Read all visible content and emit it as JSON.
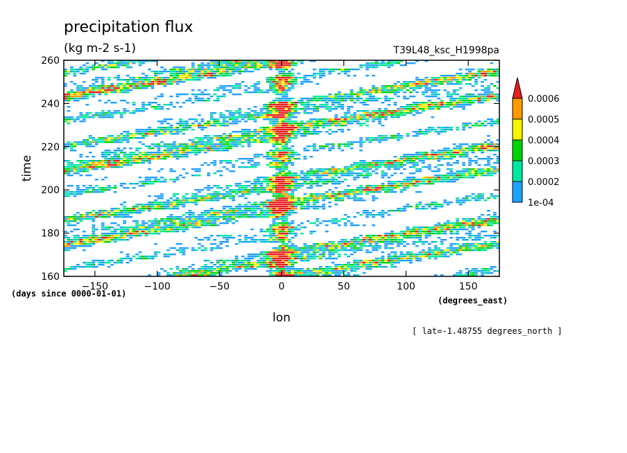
{
  "header": {
    "title": "precipitation flux",
    "units": "(kg m-2 s-1)",
    "run_name": "T39L48_ksc_H1998pa",
    "slice_note": "[ lat=-1.48755 degrees_north ]"
  },
  "chart_data": {
    "type": "heatmap",
    "xlabel": "lon",
    "xunits": "(degrees_east)",
    "ylabel": "time",
    "yunits": "(days since 0000-01-01)",
    "xlim": [
      -175,
      175
    ],
    "ylim": [
      160,
      260
    ],
    "x_ticks": [
      -150,
      -100,
      -50,
      0,
      50,
      100,
      150
    ],
    "y_ticks": [
      160,
      180,
      200,
      220,
      240,
      260
    ],
    "colorbar": {
      "levels": [
        "1e-04",
        "0.0002",
        "0.0003",
        "0.0004",
        "0.0005",
        "0.0006"
      ],
      "colors": [
        "#1ea0ff",
        "#00e6a0",
        "#00d200",
        "#f5f500",
        "#ff9a00",
        "#e61e1e"
      ],
      "extend": "max"
    },
    "features": {
      "stationary_band_lon": 0,
      "propagation": "eastward-sloping streaks across the Pacific and Indian Ocean sector"
    }
  }
}
